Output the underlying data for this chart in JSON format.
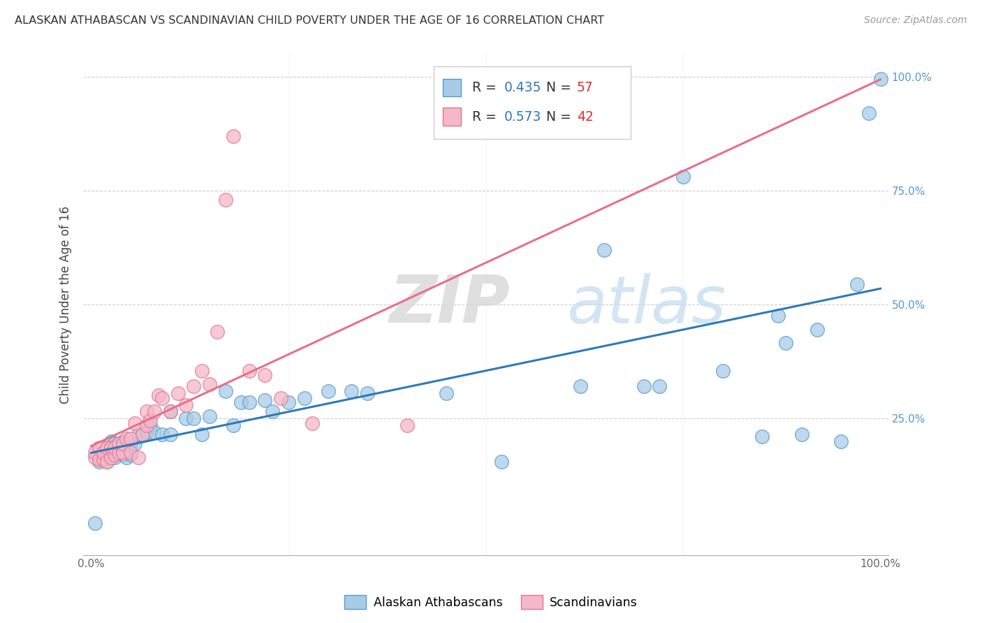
{
  "title": "ALASKAN ATHABASCAN VS SCANDINAVIAN CHILD POVERTY UNDER THE AGE OF 16 CORRELATION CHART",
  "source": "Source: ZipAtlas.com",
  "ylabel": "Child Poverty Under the Age of 16",
  "watermark_zip": "ZIP",
  "watermark_atlas": "atlas",
  "legend_r1": "0.435",
  "legend_n1": "57",
  "legend_r2": "0.573",
  "legend_n2": "42",
  "color_blue": "#a8cce8",
  "color_pink": "#f4b8c8",
  "line_blue": "#2d7ab8",
  "line_pink": "#e8708a",
  "edge_blue": "#5599cc",
  "edge_pink": "#e87090",
  "blue_x": [
    0.005,
    0.01,
    0.01,
    0.015,
    0.02,
    0.02,
    0.025,
    0.025,
    0.03,
    0.03,
    0.035,
    0.04,
    0.04,
    0.045,
    0.05,
    0.05,
    0.055,
    0.06,
    0.065,
    0.07,
    0.075,
    0.08,
    0.09,
    0.1,
    0.1,
    0.12,
    0.13,
    0.14,
    0.15,
    0.17,
    0.18,
    0.19,
    0.2,
    0.22,
    0.23,
    0.25,
    0.27,
    0.3,
    0.33,
    0.35,
    0.45,
    0.52,
    0.62,
    0.65,
    0.7,
    0.72,
    0.75,
    0.8,
    0.85,
    0.87,
    0.88,
    0.9,
    0.92,
    0.95,
    0.97,
    0.985,
    1.0
  ],
  "blue_y": [
    0.02,
    0.155,
    0.17,
    0.16,
    0.155,
    0.185,
    0.17,
    0.2,
    0.165,
    0.195,
    0.195,
    0.17,
    0.2,
    0.165,
    0.17,
    0.195,
    0.195,
    0.215,
    0.215,
    0.22,
    0.235,
    0.22,
    0.215,
    0.215,
    0.265,
    0.25,
    0.25,
    0.215,
    0.255,
    0.31,
    0.235,
    0.285,
    0.285,
    0.29,
    0.265,
    0.285,
    0.295,
    0.31,
    0.31,
    0.305,
    0.305,
    0.155,
    0.32,
    0.62,
    0.32,
    0.32,
    0.78,
    0.355,
    0.21,
    0.475,
    0.415,
    0.215,
    0.445,
    0.2,
    0.545,
    0.92,
    0.995
  ],
  "pink_x": [
    0.005,
    0.005,
    0.01,
    0.01,
    0.015,
    0.015,
    0.02,
    0.02,
    0.025,
    0.025,
    0.03,
    0.03,
    0.035,
    0.035,
    0.04,
    0.04,
    0.045,
    0.05,
    0.05,
    0.055,
    0.06,
    0.065,
    0.07,
    0.07,
    0.075,
    0.08,
    0.085,
    0.09,
    0.1,
    0.11,
    0.12,
    0.13,
    0.14,
    0.15,
    0.16,
    0.17,
    0.18,
    0.2,
    0.22,
    0.24,
    0.28,
    0.4
  ],
  "pink_y": [
    0.165,
    0.175,
    0.16,
    0.185,
    0.16,
    0.175,
    0.155,
    0.185,
    0.165,
    0.185,
    0.17,
    0.185,
    0.175,
    0.195,
    0.175,
    0.195,
    0.205,
    0.175,
    0.205,
    0.24,
    0.165,
    0.215,
    0.235,
    0.265,
    0.245,
    0.265,
    0.3,
    0.295,
    0.265,
    0.305,
    0.28,
    0.32,
    0.355,
    0.325,
    0.44,
    0.73,
    0.87,
    0.355,
    0.345,
    0.295,
    0.24,
    0.235
  ]
}
